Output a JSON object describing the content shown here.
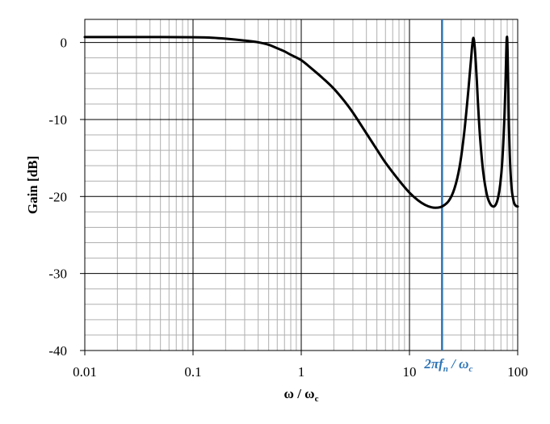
{
  "chart_data": {
    "type": "line",
    "title": "",
    "xlabel": "ω / ω",
    "xlabel_sub": "c",
    "ylabel": "Gain [dB]",
    "xscale": "log",
    "xlim": [
      0.01,
      100
    ],
    "ylim": [
      -40,
      3
    ],
    "x_ticks": [
      0.01,
      0.1,
      1,
      10,
      100
    ],
    "x_tick_labels": [
      "0.01",
      "0.1",
      "1",
      "10",
      "100"
    ],
    "y_ticks": [
      0,
      -10,
      -20,
      -30,
      -40
    ],
    "y_tick_labels": [
      "0",
      "-10",
      "-20",
      "-30",
      "-40"
    ],
    "grid": {
      "major": true,
      "minor": true
    },
    "colors": {
      "series": "#000000",
      "marker": "#2e75b6",
      "major_grid": "#000000",
      "minor_grid": "#b0b0b0"
    },
    "series": [
      {
        "x": [
          0.01,
          0.02,
          0.05,
          0.1,
          0.15,
          0.2,
          0.3,
          0.4,
          0.5,
          0.6,
          0.7,
          0.8,
          1.0,
          1.3,
          1.6,
          2,
          2.5,
          3,
          4,
          5,
          6,
          8,
          10,
          12,
          14,
          16,
          18,
          20,
          23,
          26,
          29,
          32,
          35,
          37,
          38,
          39,
          40,
          41,
          42,
          43,
          45,
          48,
          52,
          56,
          60,
          63,
          66,
          69,
          72,
          75,
          77,
          78,
          79,
          80,
          81,
          82,
          83,
          85,
          88,
          92,
          96,
          100
        ],
        "y": [
          0.7,
          0.7,
          0.7,
          0.68,
          0.62,
          0.5,
          0.25,
          0.02,
          -0.3,
          -0.75,
          -1.15,
          -1.6,
          -2.3,
          -3.6,
          -4.7,
          -6.0,
          -7.6,
          -9.1,
          -11.8,
          -13.9,
          -15.6,
          -17.9,
          -19.5,
          -20.5,
          -21.1,
          -21.4,
          -21.45,
          -21.3,
          -20.6,
          -19.0,
          -16.2,
          -11.8,
          -6.2,
          -2.3,
          -0.4,
          0.6,
          -0.5,
          -2.6,
          -5.2,
          -8.0,
          -12.5,
          -16.8,
          -19.8,
          -21.0,
          -21.3,
          -21.0,
          -20.1,
          -18.4,
          -15.5,
          -10.5,
          -5.8,
          -2.6,
          0.2,
          0.5,
          -2.5,
          -6.8,
          -10.8,
          -15.5,
          -19.0,
          -20.7,
          -21.2,
          -21.3
        ]
      }
    ],
    "annotations": [
      {
        "x": 20,
        "label_prefix": "2",
        "label_pi": "π",
        "label_f": "f",
        "label_f_sub": "n",
        "label_sep": " / ",
        "label_omega": "ω",
        "label_omega_sub": "c"
      }
    ]
  }
}
